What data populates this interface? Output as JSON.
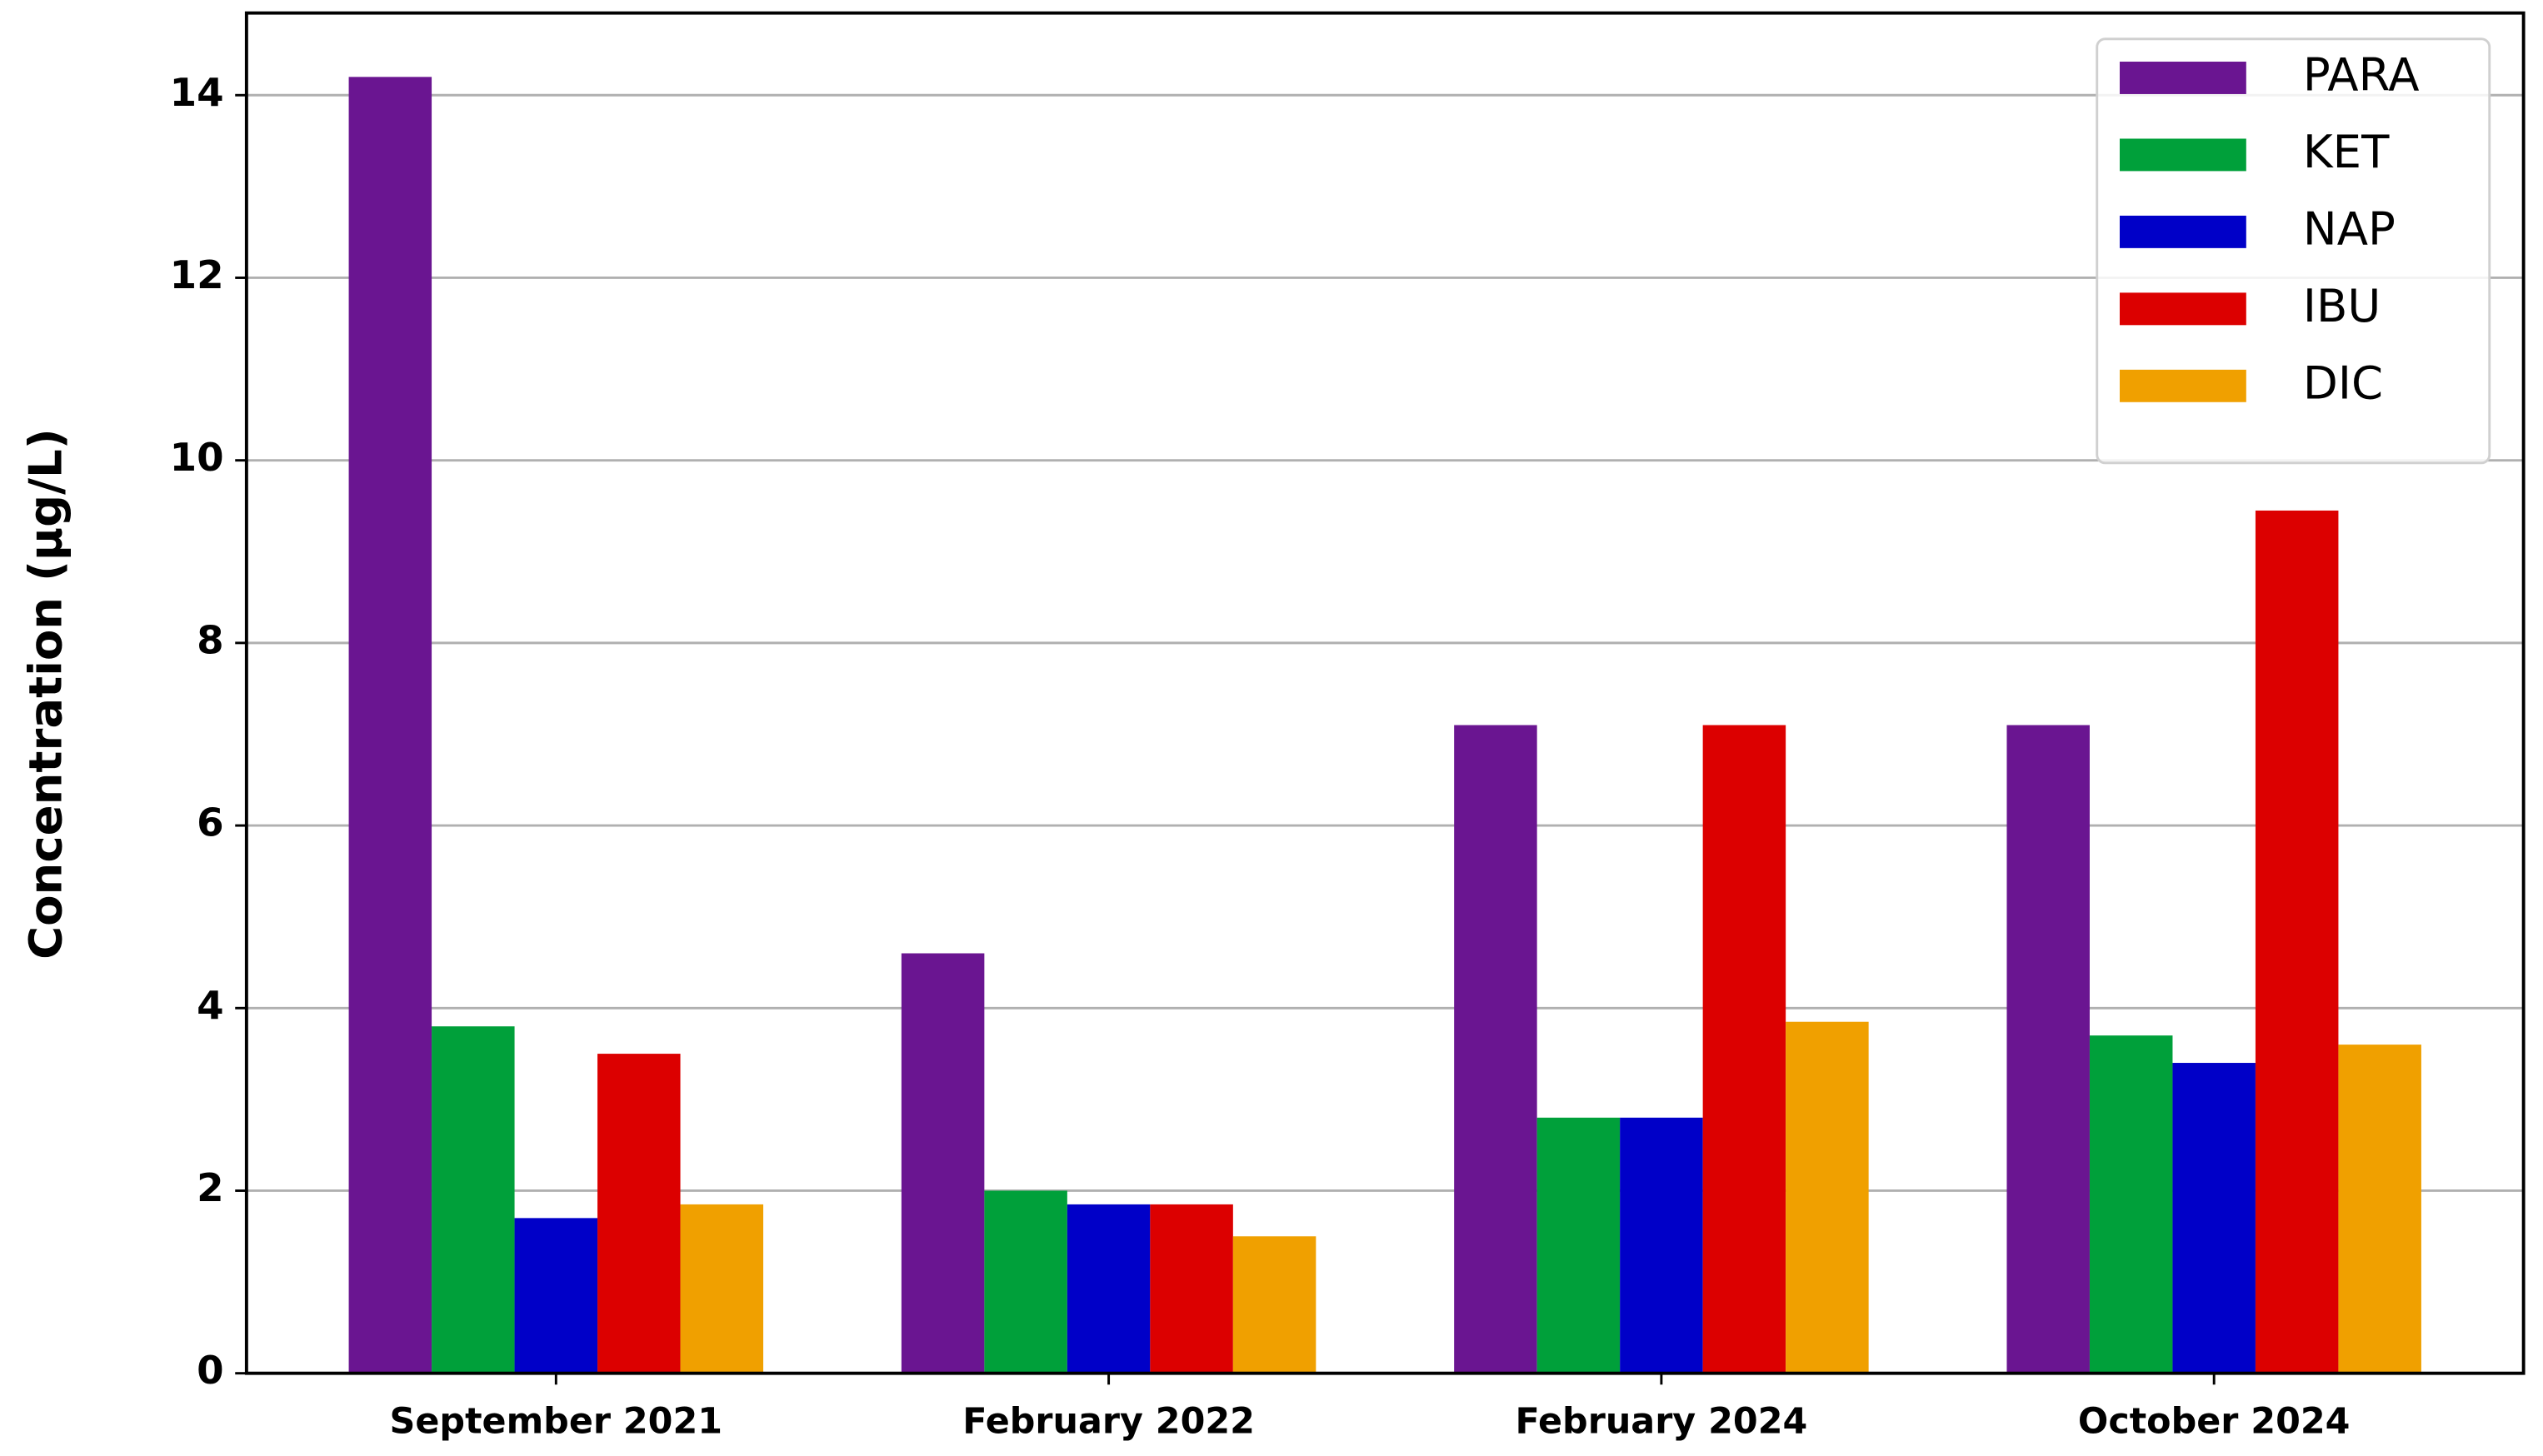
{
  "chart_data": {
    "type": "bar",
    "y_label": "Concentration (μg/L)",
    "categories": [
      "September 2021",
      "February 2022",
      "February 2024",
      "October 2024"
    ],
    "series": [
      {
        "name": "PARA",
        "color": "#6a1591",
        "values": [
          14.2,
          4.6,
          7.1,
          7.1
        ]
      },
      {
        "name": "KET",
        "color": "#00a03a",
        "values": [
          3.8,
          2.0,
          2.8,
          3.7
        ]
      },
      {
        "name": "NAP",
        "color": "#0000c8",
        "values": [
          1.7,
          1.85,
          2.8,
          3.4
        ]
      },
      {
        "name": "IBU",
        "color": "#dc0000",
        "values": [
          3.5,
          1.85,
          7.1,
          9.45
        ]
      },
      {
        "name": "DIC",
        "color": "#f0a000",
        "values": [
          1.85,
          1.5,
          3.85,
          3.6
        ]
      }
    ],
    "ylim": [
      0,
      14.9
    ],
    "yticks": [
      0,
      2,
      4,
      6,
      8,
      10,
      12,
      14
    ],
    "grid": true,
    "legend": "upper right"
  }
}
